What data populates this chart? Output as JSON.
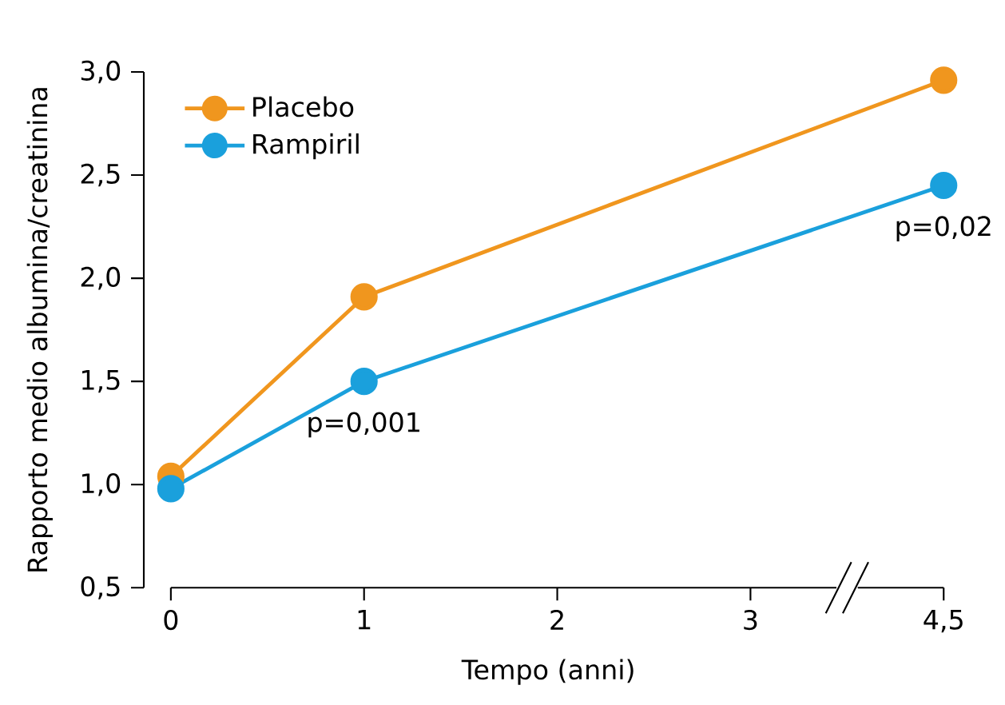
{
  "chart_data": {
    "type": "line",
    "xlabel": "Tempo (anni)",
    "ylabel": "Rapporto medio albumina/creatinina",
    "categories": [
      "0",
      "1",
      "2",
      "3",
      "4,5"
    ],
    "series": [
      {
        "name": "Placebo",
        "color": "#f0961e",
        "values": [
          1.04,
          1.91,
          null,
          null,
          2.96
        ]
      },
      {
        "name": "Rampiril",
        "color": "#1aa0dc",
        "values": [
          0.98,
          1.5,
          null,
          null,
          2.45
        ]
      }
    ],
    "ylim": [
      0.5,
      3.0
    ],
    "yticks": [
      {
        "value": 0.5,
        "label": "0,5"
      },
      {
        "value": 1.0,
        "label": "1,0"
      },
      {
        "value": 1.5,
        "label": "1,5"
      },
      {
        "value": 2.0,
        "label": "2,0"
      },
      {
        "value": 2.5,
        "label": "2,5"
      },
      {
        "value": 3.0,
        "label": "3,0"
      }
    ],
    "annotations": [
      {
        "text": "p=0,001",
        "x": "1",
        "y": 1.5
      },
      {
        "text": "p=0,02",
        "x": "4,5",
        "y": 2.45
      }
    ],
    "legend": "top left",
    "marker": "circle",
    "line_style": "solid",
    "grid": false
  }
}
